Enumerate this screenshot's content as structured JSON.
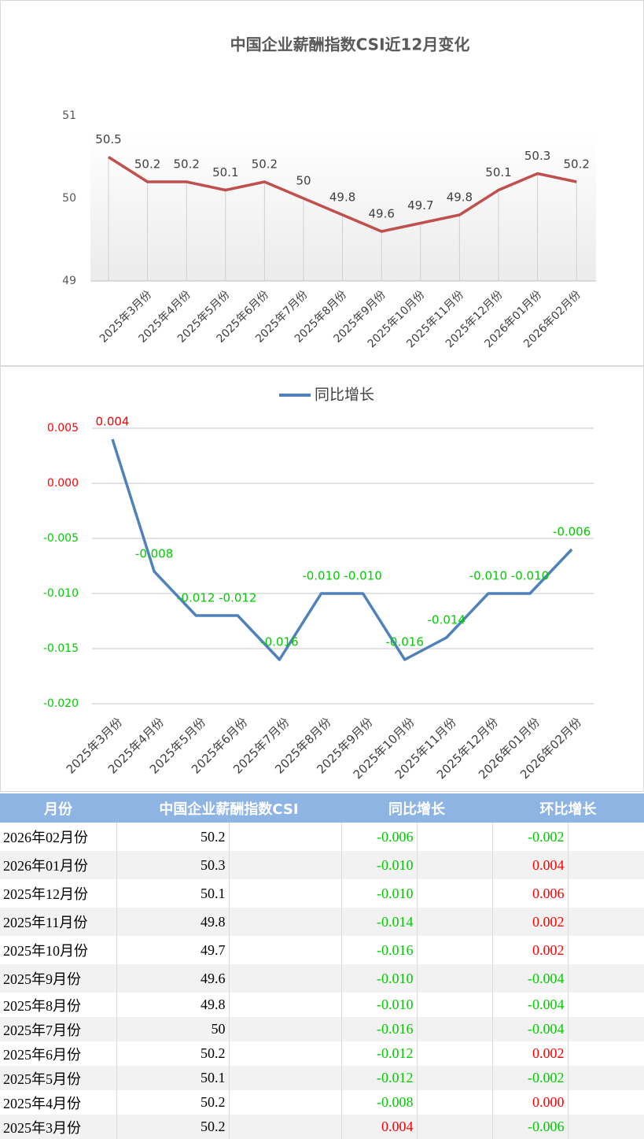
{
  "chart_data": [
    {
      "type": "line",
      "title": "中国企业薪酬指数CSI近12月变化",
      "categories": [
        null,
        "2025年3月份",
        "2025年4月份",
        "2025年5月份",
        "2025年6月份",
        "2025年7月份",
        "2025年8月份",
        "2025年9月份",
        "2025年10月份",
        "2025年11月份",
        "2025年12月份",
        "2026年01月份",
        "2026年02月份"
      ],
      "values": [
        50.5,
        50.2,
        50.2,
        50.1,
        50.2,
        50,
        49.8,
        49.6,
        49.7,
        49.8,
        50.1,
        50.3,
        50.2
      ],
      "color": "#c0504d",
      "ylim": [
        49,
        51
      ],
      "yticks": [
        49,
        50,
        51
      ],
      "grid": false,
      "drop_lines": true
    },
    {
      "type": "line",
      "categories": [
        "2025年3月份",
        "2025年4月份",
        "2025年5月份",
        "2025年6月份",
        "2025年7月份",
        "2025年8月份",
        "2025年9月份",
        "2025年10月份",
        "2025年11月份",
        "2025年12月份",
        "2026年01月份",
        "2026年02月份"
      ],
      "series": [
        {
          "name": "同比增长",
          "color": "#4f81bd",
          "values": [
            0.004,
            -0.008,
            -0.012,
            -0.012,
            -0.016,
            -0.01,
            -0.01,
            -0.016,
            -0.014,
            -0.01,
            -0.01,
            -0.006
          ],
          "value_labels": [
            "0.004",
            "-0.008",
            "-0.012",
            "-0.012",
            "-0.016",
            "-0.010",
            "-0.010",
            "-0.016",
            "-0.014",
            "-0.010",
            "-0.010",
            "-0.006"
          ]
        }
      ],
      "ylim": [
        -0.02,
        0.005
      ],
      "yticks": [
        {
          "value": -0.02,
          "label": "-0.020"
        },
        {
          "value": -0.015,
          "label": "-0.015"
        },
        {
          "value": -0.01,
          "label": "-0.010"
        },
        {
          "value": -0.005,
          "label": "-0.005"
        },
        {
          "value": 0,
          "label": "0.000"
        },
        {
          "value": 0.005,
          "label": "0.005"
        }
      ],
      "grid": true,
      "legend": "top",
      "positive_color": "#ff0000",
      "negative_color": "#00cc00"
    }
  ],
  "table": {
    "header": [
      "月份",
      "中国企业薪酬指数CSI",
      "同比增长",
      "环比增长"
    ],
    "rows": [
      [
        "2026年02月份",
        "50.2",
        "-0.006",
        "-0.002"
      ],
      [
        "2026年01月份",
        "50.3",
        "-0.010",
        "0.004"
      ],
      [
        "2025年12月份",
        "50.1",
        "-0.010",
        "0.006"
      ],
      [
        "2025年11月份",
        "49.8",
        "-0.014",
        "0.002"
      ],
      [
        "2025年10月份",
        "49.7",
        "-0.016",
        "0.002"
      ],
      [
        "2025年9月份",
        "49.6",
        "-0.010",
        "-0.004"
      ],
      [
        "2025年8月份",
        "49.8",
        "-0.010",
        "-0.004"
      ],
      [
        "2025年7月份",
        "50",
        "-0.016",
        "-0.004"
      ],
      [
        "2025年6月份",
        "50.2",
        "-0.012",
        "0.002"
      ],
      [
        "2025年5月份",
        "50.1",
        "-0.012",
        "-0.002"
      ],
      [
        "2025年4月份",
        "50.2",
        "-0.008",
        "0.000"
      ],
      [
        "2025年3月份",
        "50.2",
        "0.004",
        "-0.006"
      ]
    ]
  }
}
